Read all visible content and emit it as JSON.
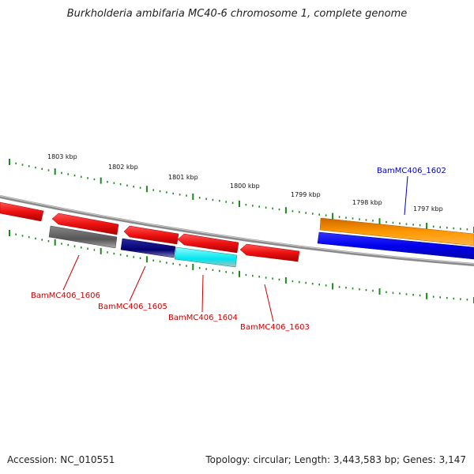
{
  "title": "Burkholderia ambifaria MC40-6 chromosome 1, complete genome",
  "accession": "Accession: NC_010551",
  "topology": "Topology: circular; Length: 3,443,583 bp; Genes: 3,147",
  "scale_labels": [
    "1803 kbp",
    "1802 kbp",
    "1801 kbp",
    "1800 kbp",
    "1799 kbp",
    "1798 kbp",
    "1797 kbp"
  ],
  "gene_labels": [
    "BamMC406_1606",
    "BamMC406_1605",
    "BamMC406_1604",
    "BamMC406_1603",
    "BamMC406_1602"
  ],
  "colors": {
    "backbone": "#8a8a8a",
    "tick": "#1a8a1a",
    "red_gene": "#ee1111",
    "orange_gene": "#ff9900",
    "blue_gene": "#0000ee",
    "navy_gene": "#000080",
    "cyan_gene": "#00e5ee",
    "gray_gene": "#666666",
    "label_red": "#cc0000",
    "label_blue": "#0000cc"
  }
}
